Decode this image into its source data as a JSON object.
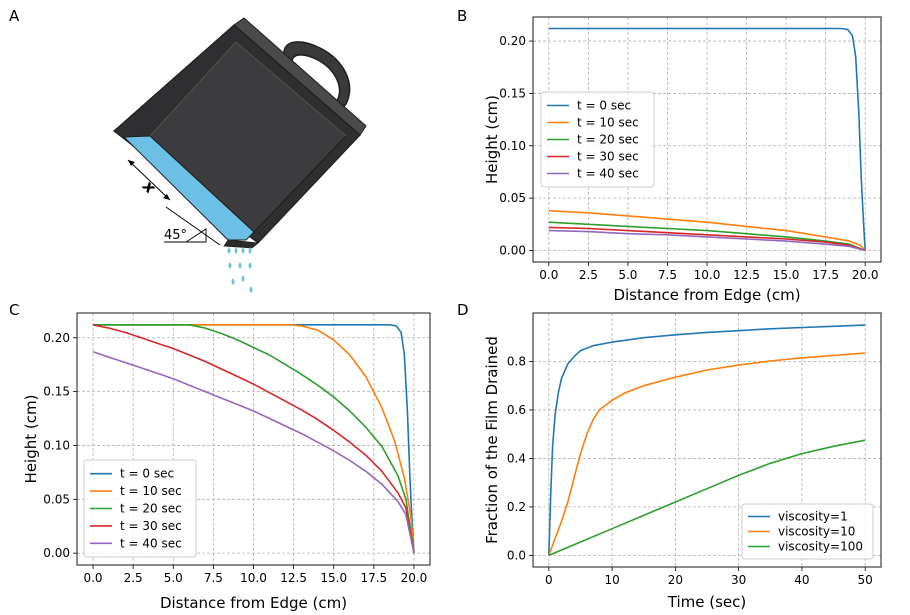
{
  "panels": {
    "A": {
      "letter": "A",
      "x_label": "x",
      "angle_label": "45°"
    },
    "B": {
      "letter": "B"
    },
    "C": {
      "letter": "C"
    },
    "D": {
      "letter": "D"
    }
  },
  "colors": {
    "c0": "#1f77b4",
    "c1": "#ff7f0e",
    "c2": "#2ca02c",
    "c3": "#d62728",
    "c4": "#9467bd",
    "pan_dark": "#3a3a3c",
    "pan_edge": "#2b2b2b",
    "liquid": "#6cc0e5",
    "drop": "#6cc0e5"
  },
  "chart_data": [
    {
      "id": "B",
      "type": "line",
      "xlabel": "Distance from Edge (cm)",
      "ylabel": "Height (cm)",
      "xlim": [
        -1.0,
        21.0
      ],
      "ylim": [
        -0.011,
        0.223
      ],
      "xticks": [
        0.0,
        2.5,
        5.0,
        7.5,
        10.0,
        12.5,
        15.0,
        17.5,
        20.0
      ],
      "xtick_labels": [
        "0.0",
        "2.5",
        "5.0",
        "7.5",
        "10.0",
        "12.5",
        "15.0",
        "17.5",
        "20.0"
      ],
      "yticks": [
        0.0,
        0.05,
        0.1,
        0.15,
        0.2
      ],
      "ytick_labels": [
        "0.00",
        "0.05",
        "0.10",
        "0.15",
        "0.20"
      ],
      "grid": true,
      "legend": "center-left",
      "series": [
        {
          "name": "t = 0 sec",
          "x": [
            0,
            5,
            10,
            15,
            18.5,
            18.9,
            19.2,
            19.4,
            19.6,
            19.75,
            19.9,
            20.0
          ],
          "y": [
            0.212,
            0.212,
            0.212,
            0.212,
            0.212,
            0.211,
            0.205,
            0.185,
            0.13,
            0.07,
            0.025,
            0.0
          ]
        },
        {
          "name": "t = 10 sec",
          "x": [
            0,
            2.5,
            5,
            7.5,
            10,
            12.5,
            15,
            17.5,
            19,
            19.7,
            20.0
          ],
          "y": [
            0.038,
            0.036,
            0.033,
            0.03,
            0.027,
            0.023,
            0.019,
            0.013,
            0.009,
            0.005,
            0.0
          ]
        },
        {
          "name": "t = 20 sec",
          "x": [
            0,
            2.5,
            5,
            7.5,
            10,
            12.5,
            15,
            17.5,
            19,
            20.0
          ],
          "y": [
            0.027,
            0.025,
            0.023,
            0.021,
            0.019,
            0.016,
            0.013,
            0.009,
            0.006,
            0.0
          ]
        },
        {
          "name": "t = 30 sec",
          "x": [
            0,
            2.5,
            5,
            7.5,
            10,
            12.5,
            15,
            17.5,
            19,
            20.0
          ],
          "y": [
            0.022,
            0.021,
            0.019,
            0.017,
            0.015,
            0.013,
            0.011,
            0.008,
            0.005,
            0.0
          ]
        },
        {
          "name": "t = 40 sec",
          "x": [
            0,
            2.5,
            5,
            7.5,
            10,
            12.5,
            15,
            17.5,
            19,
            20.0
          ],
          "y": [
            0.019,
            0.018,
            0.016,
            0.015,
            0.013,
            0.011,
            0.009,
            0.006,
            0.004,
            0.0
          ]
        }
      ]
    },
    {
      "id": "C",
      "type": "line",
      "xlabel": "Distance from Edge (cm)",
      "ylabel": "Height (cm)",
      "xlim": [
        -1.0,
        21.0
      ],
      "ylim": [
        -0.011,
        0.223
      ],
      "xticks": [
        0.0,
        2.5,
        5.0,
        7.5,
        10.0,
        12.5,
        15.0,
        17.5,
        20.0
      ],
      "xtick_labels": [
        "0.0",
        "2.5",
        "5.0",
        "7.5",
        "10.0",
        "12.5",
        "15.0",
        "17.5",
        "20.0"
      ],
      "yticks": [
        0.0,
        0.05,
        0.1,
        0.15,
        0.2
      ],
      "ytick_labels": [
        "0.00",
        "0.05",
        "0.10",
        "0.15",
        "0.20"
      ],
      "grid": true,
      "legend": "lower-left",
      "series": [
        {
          "name": "t = 0 sec",
          "x": [
            0,
            5,
            10,
            15,
            18.5,
            18.9,
            19.2,
            19.4,
            19.6,
            19.75,
            19.9,
            20.0
          ],
          "y": [
            0.212,
            0.212,
            0.212,
            0.212,
            0.212,
            0.211,
            0.205,
            0.185,
            0.13,
            0.07,
            0.025,
            0.0
          ]
        },
        {
          "name": "t = 10 sec",
          "x": [
            0,
            5,
            10,
            12.4,
            13.0,
            14.0,
            15.0,
            16.0,
            17.0,
            18.0,
            18.8,
            19.4,
            19.8,
            20.0
          ],
          "y": [
            0.212,
            0.212,
            0.212,
            0.212,
            0.211,
            0.207,
            0.198,
            0.184,
            0.164,
            0.135,
            0.104,
            0.07,
            0.035,
            0.0
          ]
        },
        {
          "name": "t = 20 sec",
          "x": [
            0,
            3,
            6,
            7,
            8,
            9,
            10,
            11,
            12,
            13,
            14,
            15,
            16,
            17,
            18,
            19,
            19.5,
            20.0
          ],
          "y": [
            0.212,
            0.212,
            0.212,
            0.209,
            0.204,
            0.198,
            0.191,
            0.184,
            0.175,
            0.166,
            0.156,
            0.145,
            0.132,
            0.117,
            0.099,
            0.072,
            0.05,
            0.0
          ]
        },
        {
          "name": "t = 30 sec",
          "x": [
            0,
            1,
            2,
            3,
            4,
            5,
            6,
            7,
            8,
            9,
            10,
            11,
            12,
            13,
            14,
            15,
            16,
            17,
            18,
            19,
            19.5,
            20.0
          ],
          "y": [
            0.212,
            0.209,
            0.205,
            0.2,
            0.195,
            0.19,
            0.184,
            0.178,
            0.171,
            0.164,
            0.157,
            0.149,
            0.141,
            0.133,
            0.124,
            0.114,
            0.103,
            0.091,
            0.076,
            0.056,
            0.042,
            0.0
          ]
        },
        {
          "name": "t = 40 sec",
          "x": [
            0,
            1,
            2,
            3,
            4,
            5,
            6,
            7,
            8,
            9,
            10,
            11,
            12,
            13,
            14,
            15,
            16,
            17,
            18,
            19,
            19.5,
            20.0
          ],
          "y": [
            0.187,
            0.182,
            0.177,
            0.172,
            0.167,
            0.162,
            0.156,
            0.15,
            0.144,
            0.138,
            0.132,
            0.125,
            0.118,
            0.111,
            0.103,
            0.095,
            0.086,
            0.076,
            0.064,
            0.048,
            0.036,
            0.0
          ]
        }
      ]
    },
    {
      "id": "D",
      "type": "line",
      "xlabel": "Time (sec)",
      "ylabel": "Fraction of the Film Drained",
      "xlim": [
        -2.5,
        52.5
      ],
      "ylim": [
        -0.048,
        1.0
      ],
      "xticks": [
        0,
        10,
        20,
        30,
        40,
        50
      ],
      "xtick_labels": [
        "0",
        "10",
        "20",
        "30",
        "40",
        "50"
      ],
      "yticks": [
        0.0,
        0.2,
        0.4,
        0.6,
        0.8
      ],
      "ytick_labels": [
        "0.0",
        "0.2",
        "0.4",
        "0.6",
        "0.8"
      ],
      "grid": true,
      "legend": "lower-right",
      "series": [
        {
          "name": "viscosity=1",
          "x": [
            0,
            0.3,
            0.6,
            1,
            1.5,
            2,
            3,
            4,
            5,
            7,
            10,
            15,
            20,
            25,
            30,
            35,
            40,
            45,
            50
          ],
          "y": [
            0.0,
            0.25,
            0.45,
            0.58,
            0.67,
            0.73,
            0.79,
            0.82,
            0.845,
            0.865,
            0.88,
            0.898,
            0.91,
            0.92,
            0.927,
            0.935,
            0.94,
            0.945,
            0.95
          ]
        },
        {
          "name": "viscosity=10",
          "x": [
            0,
            1,
            2,
            3,
            4,
            5,
            6,
            7,
            8,
            10,
            12,
            15,
            20,
            25,
            30,
            35,
            40,
            45,
            50
          ],
          "y": [
            0.0,
            0.07,
            0.14,
            0.22,
            0.32,
            0.42,
            0.5,
            0.56,
            0.6,
            0.64,
            0.67,
            0.7,
            0.735,
            0.765,
            0.785,
            0.802,
            0.815,
            0.825,
            0.835
          ]
        },
        {
          "name": "viscosity=100",
          "x": [
            0,
            5,
            10,
            15,
            20,
            25,
            30,
            35,
            40,
            45,
            50
          ],
          "y": [
            0.0,
            0.055,
            0.11,
            0.165,
            0.22,
            0.275,
            0.33,
            0.38,
            0.42,
            0.45,
            0.475
          ]
        }
      ]
    }
  ]
}
